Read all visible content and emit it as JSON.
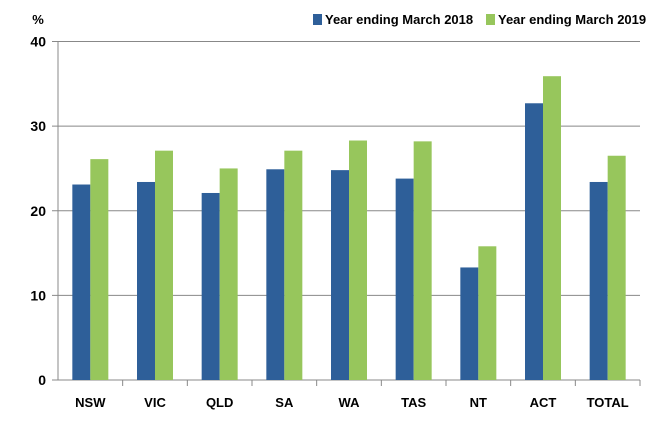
{
  "chart_data": {
    "type": "bar",
    "ylabel": "%",
    "ylim": [
      0,
      40
    ],
    "yticks": [
      0,
      10,
      20,
      30,
      40
    ],
    "grid": true,
    "legend_position": "top-right",
    "categories": [
      "NSW",
      "VIC",
      "QLD",
      "SA",
      "WA",
      "TAS",
      "NT",
      "ACT",
      "TOTAL"
    ],
    "series": [
      {
        "name": "Year ending March 2018",
        "color": "#2e5f99",
        "values": [
          23.1,
          23.4,
          22.1,
          24.9,
          24.8,
          23.8,
          13.3,
          32.7,
          23.4
        ]
      },
      {
        "name": "Year ending March 2019",
        "color": "#97c65c",
        "values": [
          26.1,
          27.1,
          25.0,
          27.1,
          28.3,
          28.2,
          15.8,
          35.9,
          26.5
        ]
      }
    ]
  }
}
